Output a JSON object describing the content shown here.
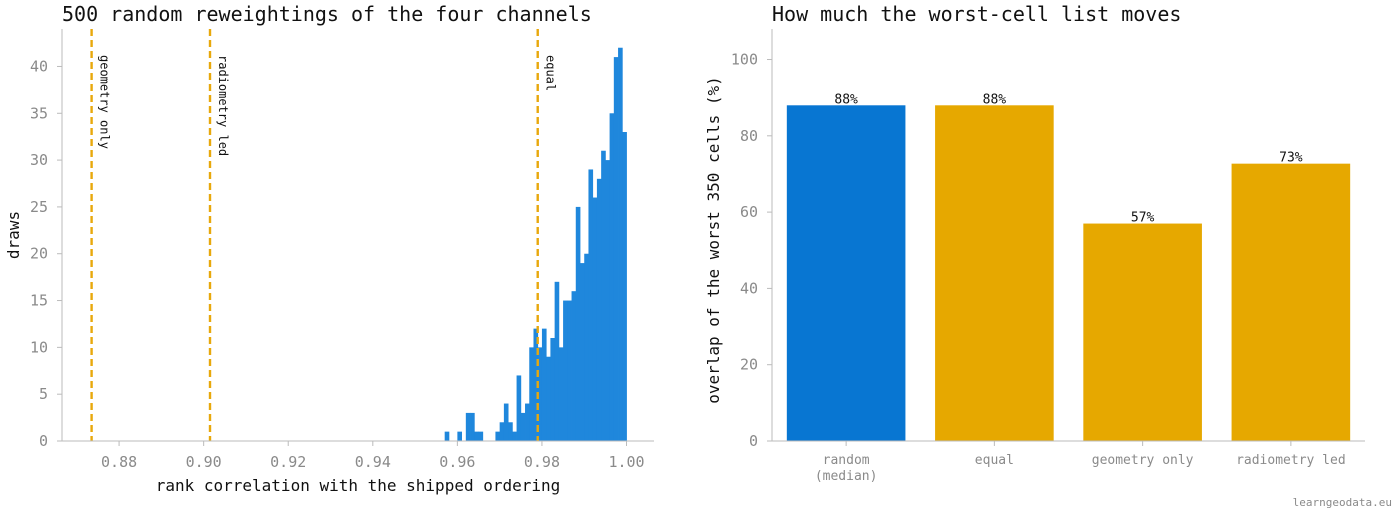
{
  "chart_data": [
    {
      "type": "histogram",
      "title": "500 random reweightings of the four channels",
      "xlabel": "rank correlation with the shipped ordering",
      "ylabel": "draws",
      "xlim": [
        0.8665,
        1.0065
      ],
      "ylim": [
        0,
        44
      ],
      "xticks": [
        0.88,
        0.9,
        0.92,
        0.94,
        0.96,
        0.98,
        1.0
      ],
      "xtick_labels": [
        "0.88",
        "0.90",
        "0.92",
        "0.94",
        "0.96",
        "0.98",
        "1.00"
      ],
      "yticks": [
        0,
        5,
        10,
        15,
        20,
        25,
        30,
        35,
        40
      ],
      "ytick_labels": [
        "0",
        "5",
        "10",
        "15",
        "20",
        "25",
        "30",
        "35",
        "40"
      ],
      "bin_width": 0.001,
      "bins_start": 0.957,
      "counts": [
        1,
        0,
        0,
        1,
        0,
        3,
        3,
        1,
        1,
        0,
        0,
        0,
        1,
        2,
        4,
        2,
        1,
        7,
        3,
        4,
        10,
        12,
        10,
        12,
        9,
        11,
        17,
        10,
        15,
        15,
        16,
        25,
        19,
        20,
        29,
        26,
        28,
        31,
        30,
        35,
        41,
        42,
        33
      ],
      "color": "#1f87dc",
      "reference_lines": [
        {
          "label": "geometry only",
          "x": 0.8735
        },
        {
          "label": "radiometry led",
          "x": 0.9015
        },
        {
          "label": "equal",
          "x": 0.979
        }
      ],
      "reference_color": "#e8a80c"
    },
    {
      "type": "bar",
      "title": "How much the worst-cell list moves",
      "xlabel": "",
      "ylabel": "overlap of the worst 350 cells (%)",
      "ylim": [
        0,
        108
      ],
      "yticks": [
        0,
        20,
        40,
        60,
        80,
        100
      ],
      "ytick_labels": [
        "0",
        "20",
        "40",
        "60",
        "80",
        "100"
      ],
      "categories": [
        [
          "random",
          "(median)"
        ],
        [
          "equal"
        ],
        [
          "geometry only"
        ],
        [
          "radiometry led"
        ]
      ],
      "values": [
        88,
        88,
        57,
        72.7
      ],
      "value_labels": [
        "88%",
        "88%",
        "57%",
        "73%"
      ],
      "colors": [
        "#0876d2",
        "#e6a800",
        "#e6a800",
        "#e6a800"
      ]
    }
  ],
  "credit": "learngeodata.eu"
}
